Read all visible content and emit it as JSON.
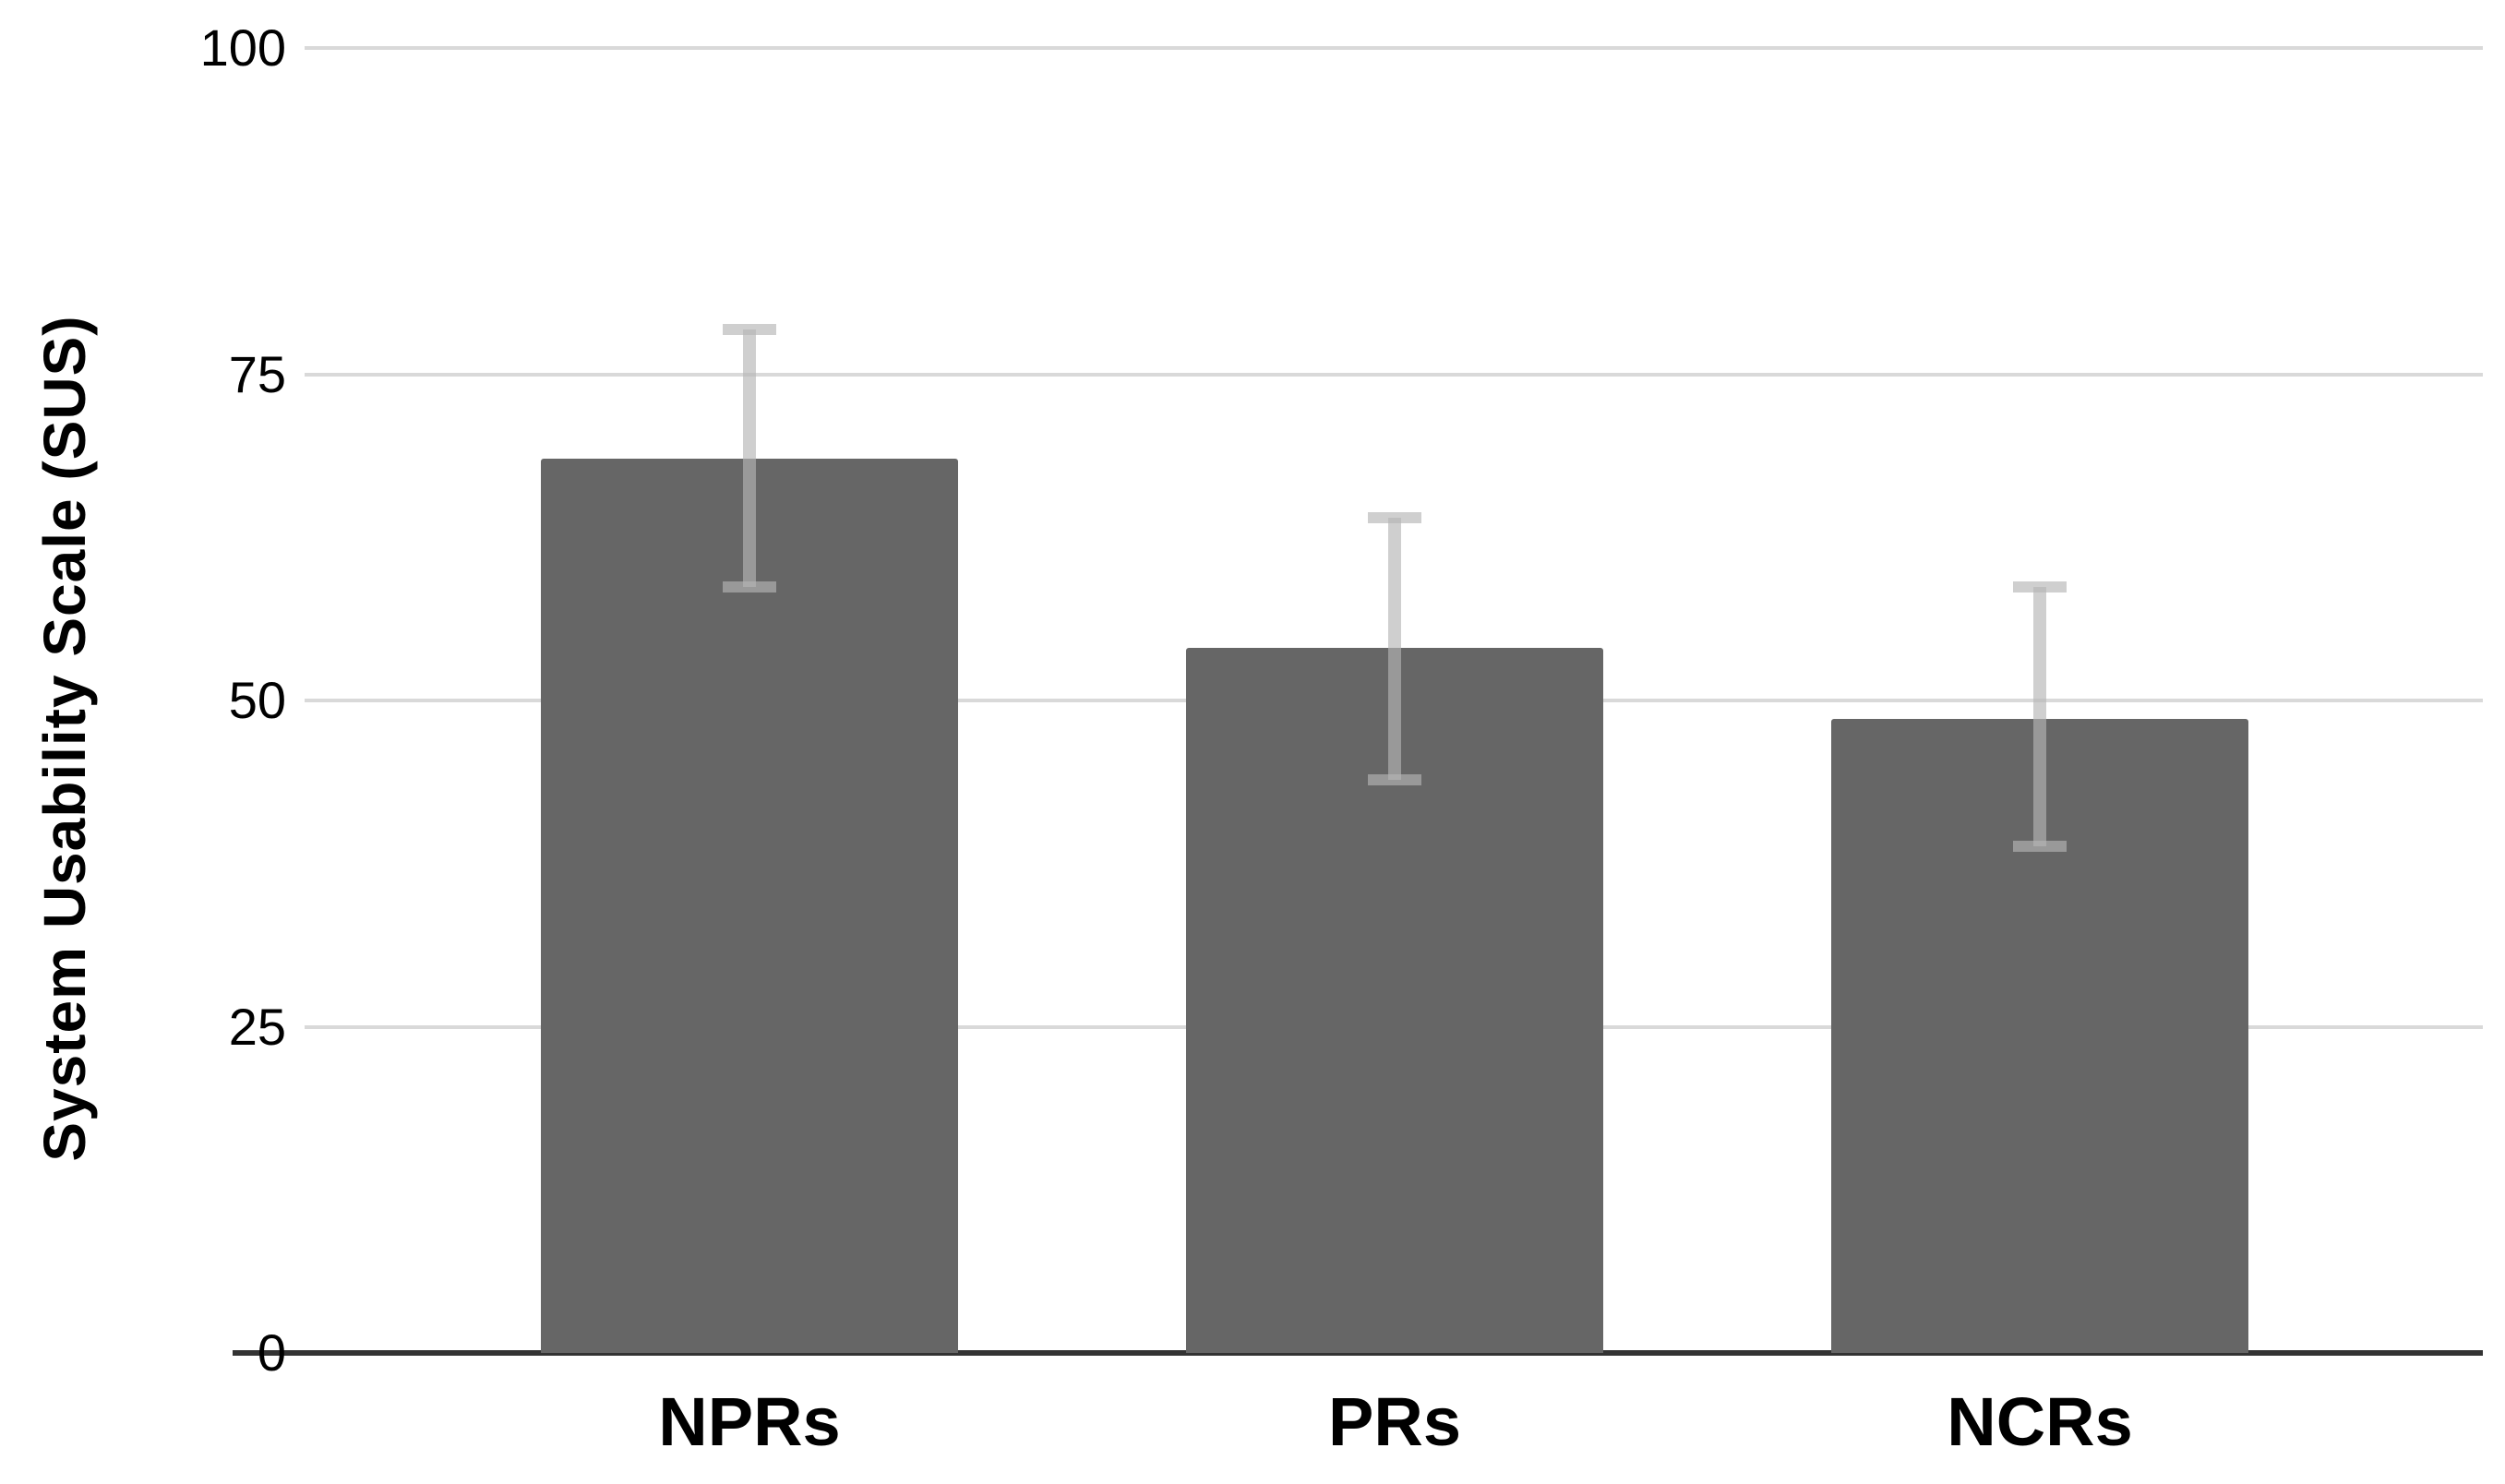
{
  "chart_data": {
    "type": "bar",
    "title": "",
    "categories": [
      "NPRs",
      "PRs",
      "NCRs"
    ],
    "values": [
      68.5,
      54.0,
      48.6
    ],
    "error_low": [
      58.7,
      43.9,
      38.8
    ],
    "error_high": [
      78.4,
      64.0,
      58.7
    ],
    "xlabel": "",
    "ylabel": "System Usability Scale (SUS)",
    "ylim": [
      0,
      100
    ],
    "yticks": [
      0,
      25,
      50,
      75,
      100
    ],
    "grid": "horizontal",
    "legend": "none",
    "colors": {
      "bar": "#666666",
      "gridline": "#d9d9d9",
      "axis_line": "#333333",
      "error_bar": "#b5b5b5",
      "error_bar_alpha": 0.65,
      "text": "#000000",
      "background": "#ffffff"
    }
  }
}
